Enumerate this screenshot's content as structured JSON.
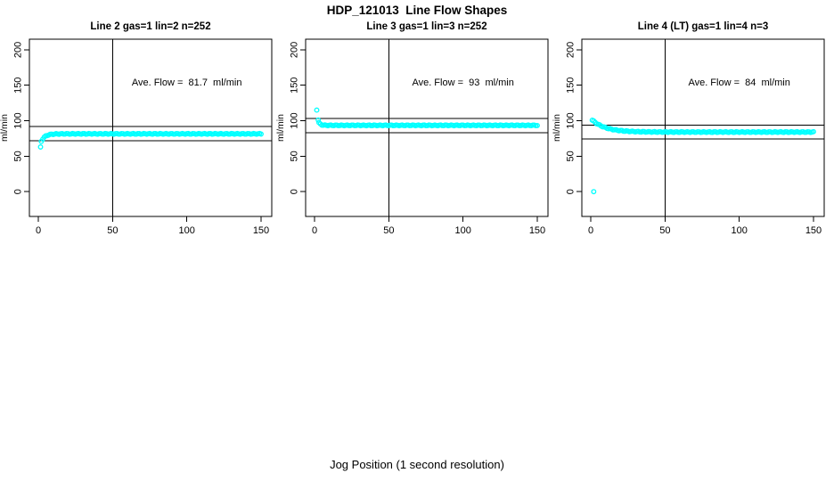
{
  "chart_data": {
    "type": "scatter",
    "title": "HDP_121013  Line Flow Shapes",
    "xlabel": "Jog Position (1 second resolution)",
    "ylabel": "ml/min",
    "marker": "open-circle",
    "marker_color": "#00FFFF",
    "axis_color": "#000000",
    "background_color": "#FFFFFF",
    "grid": false,
    "xlim": [
      0,
      150
    ],
    "ylim_drawn": [
      -35,
      215
    ],
    "x_ticks": [
      0,
      50,
      100,
      150
    ],
    "y_ticks": [
      0,
      50,
      100,
      150,
      200
    ],
    "panels": [
      {
        "title": "Line 2 gas=1 lin=2 n=252",
        "annotation": "Ave. Flow =  81.7  ml/min",
        "ave_flow": 81.7,
        "hlines": [
          91.7,
          71.7
        ],
        "vline_x": 50,
        "outlier_points": [
          [
            1.5,
            63
          ]
        ],
        "curve": {
          "x_start": 2,
          "x_end": 150,
          "y_start": 71,
          "plateau": 81.5,
          "tau": 2.5
        },
        "annotation_xy": [
          100,
          152
        ]
      },
      {
        "title": "Line 3 gas=1 lin=3 n=252",
        "annotation": "Ave. Flow =  93  ml/min",
        "ave_flow": 93,
        "hlines": [
          103,
          83
        ],
        "vline_x": 50,
        "outlier_points": [
          [
            1.5,
            115
          ],
          [
            2.5,
            101
          ]
        ],
        "curve": {
          "x_start": 3,
          "x_end": 150,
          "y_start": 97,
          "plateau": 93.5,
          "tau": 1.3
        },
        "annotation_xy": [
          100,
          152
        ]
      },
      {
        "title": "Line 4 (LT) gas=1 lin=4 n=3",
        "annotation": "Ave. Flow =  84  ml/min",
        "ave_flow": 84,
        "hlines": [
          94,
          74
        ],
        "vline_x": 50,
        "outlier_points": [
          [
            2,
            0
          ]
        ],
        "curve": {
          "x_start": 1,
          "x_end": 150,
          "y_start": 101,
          "plateau": 84,
          "tau": 9
        },
        "annotation_xy": [
          100,
          152
        ]
      }
    ]
  }
}
